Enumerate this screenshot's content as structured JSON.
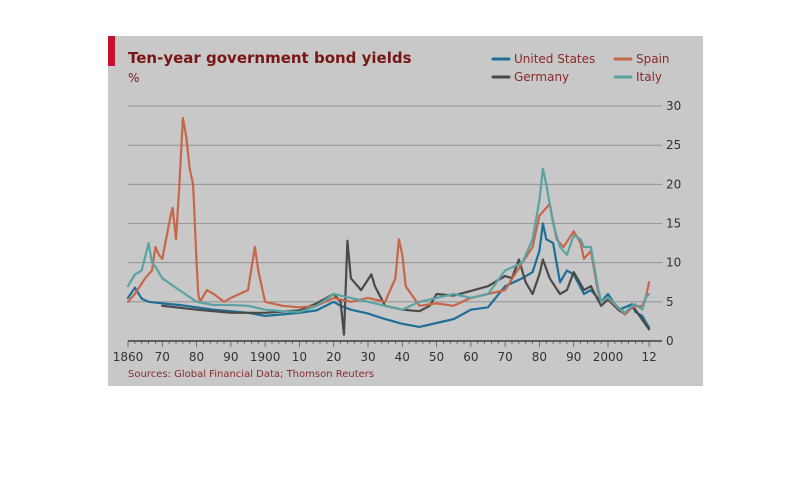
{
  "chart_data": {
    "type": "line",
    "title": "Ten-year government bond yields",
    "ylabel": "%",
    "source": "Sources: Global Financial Data; Thomson Reuters",
    "xlim": [
      1860,
      2014
    ],
    "ylim": [
      0,
      30
    ],
    "y_ticks": [
      0,
      5,
      10,
      15,
      20,
      25,
      30
    ],
    "x_ticks": [
      {
        "year": 1860,
        "label": "1860"
      },
      {
        "year": 1870,
        "label": "70"
      },
      {
        "year": 1880,
        "label": "80"
      },
      {
        "year": 1890,
        "label": "90"
      },
      {
        "year": 1900,
        "label": "1900"
      },
      {
        "year": 1910,
        "label": "10"
      },
      {
        "year": 1920,
        "label": "20"
      },
      {
        "year": 1930,
        "label": "30"
      },
      {
        "year": 1940,
        "label": "40"
      },
      {
        "year": 1950,
        "label": "50"
      },
      {
        "year": 1960,
        "label": "60"
      },
      {
        "year": 1970,
        "label": "70"
      },
      {
        "year": 1980,
        "label": "80"
      },
      {
        "year": 1990,
        "label": "90"
      },
      {
        "year": 2000,
        "label": "2000"
      },
      {
        "year": 2012,
        "label": "12"
      }
    ],
    "grid": true,
    "legend_position": "top-right",
    "series": [
      {
        "name": "United States",
        "color": "#1f6e96",
        "points": [
          [
            1860,
            5.5
          ],
          [
            1862,
            6.8
          ],
          [
            1864,
            5.4
          ],
          [
            1866,
            5.0
          ],
          [
            1870,
            4.8
          ],
          [
            1875,
            4.6
          ],
          [
            1880,
            4.3
          ],
          [
            1885,
            4.0
          ],
          [
            1890,
            3.8
          ],
          [
            1895,
            3.6
          ],
          [
            1900,
            3.2
          ],
          [
            1905,
            3.4
          ],
          [
            1910,
            3.6
          ],
          [
            1915,
            3.9
          ],
          [
            1920,
            5.0
          ],
          [
            1922,
            4.5
          ],
          [
            1925,
            4.0
          ],
          [
            1930,
            3.5
          ],
          [
            1935,
            2.8
          ],
          [
            1940,
            2.2
          ],
          [
            1945,
            1.8
          ],
          [
            1950,
            2.3
          ],
          [
            1955,
            2.8
          ],
          [
            1960,
            4.0
          ],
          [
            1965,
            4.3
          ],
          [
            1970,
            7.0
          ],
          [
            1975,
            8.0
          ],
          [
            1978,
            8.8
          ],
          [
            1980,
            11.5
          ],
          [
            1981,
            15.0
          ],
          [
            1982,
            13.0
          ],
          [
            1984,
            12.5
          ],
          [
            1986,
            7.5
          ],
          [
            1988,
            9.0
          ],
          [
            1990,
            8.5
          ],
          [
            1993,
            6.0
          ],
          [
            1995,
            6.5
          ],
          [
            1998,
            5.0
          ],
          [
            2000,
            6.0
          ],
          [
            2003,
            4.0
          ],
          [
            2005,
            4.3
          ],
          [
            2007,
            4.7
          ],
          [
            2008,
            3.7
          ],
          [
            2010,
            3.2
          ],
          [
            2012,
            1.7
          ]
        ]
      },
      {
        "name": "Germany",
        "color": "#4a4a4a",
        "points": [
          [
            1870,
            4.5
          ],
          [
            1880,
            4.0
          ],
          [
            1890,
            3.6
          ],
          [
            1900,
            3.6
          ],
          [
            1910,
            3.9
          ],
          [
            1915,
            4.8
          ],
          [
            1920,
            6.0
          ],
          [
            1922,
            5.0
          ],
          [
            1923,
            0.8
          ],
          [
            1924,
            12.8
          ],
          [
            1925,
            8.0
          ],
          [
            1928,
            6.5
          ],
          [
            1931,
            8.5
          ],
          [
            1932,
            7.0
          ],
          [
            1935,
            4.5
          ],
          [
            1940,
            4.0
          ],
          [
            1945,
            3.8
          ],
          [
            1948,
            4.5
          ],
          [
            1950,
            6.0
          ],
          [
            1955,
            5.8
          ],
          [
            1960,
            6.4
          ],
          [
            1965,
            7.0
          ],
          [
            1970,
            8.3
          ],
          [
            1972,
            8.0
          ],
          [
            1974,
            10.4
          ],
          [
            1976,
            7.5
          ],
          [
            1978,
            6.0
          ],
          [
            1980,
            8.5
          ],
          [
            1981,
            10.4
          ],
          [
            1983,
            8.0
          ],
          [
            1986,
            6.0
          ],
          [
            1988,
            6.5
          ],
          [
            1990,
            8.8
          ],
          [
            1993,
            6.5
          ],
          [
            1995,
            7.0
          ],
          [
            1998,
            4.5
          ],
          [
            2000,
            5.3
          ],
          [
            2003,
            4.0
          ],
          [
            2005,
            3.4
          ],
          [
            2007,
            4.3
          ],
          [
            2008,
            4.0
          ],
          [
            2010,
            2.7
          ],
          [
            2012,
            1.5
          ]
        ]
      },
      {
        "name": "Spain",
        "color": "#c8664a",
        "points": [
          [
            1860,
            5.0
          ],
          [
            1862,
            6.0
          ],
          [
            1865,
            8.0
          ],
          [
            1867,
            9.0
          ],
          [
            1868,
            12.0
          ],
          [
            1869,
            11.0
          ],
          [
            1870,
            10.5
          ],
          [
            1872,
            15.0
          ],
          [
            1873,
            17.0
          ],
          [
            1874,
            13.0
          ],
          [
            1875,
            20.0
          ],
          [
            1876,
            28.5
          ],
          [
            1877,
            26.0
          ],
          [
            1878,
            22.0
          ],
          [
            1879,
            20.0
          ],
          [
            1880,
            10.0
          ],
          [
            1880.5,
            6.0
          ],
          [
            1881,
            5.0
          ],
          [
            1883,
            6.5
          ],
          [
            1885,
            6.0
          ],
          [
            1888,
            5.0
          ],
          [
            1890,
            5.5
          ],
          [
            1895,
            6.5
          ],
          [
            1897,
            12.0
          ],
          [
            1898,
            9.0
          ],
          [
            1899,
            7.0
          ],
          [
            1900,
            5.0
          ],
          [
            1905,
            4.5
          ],
          [
            1910,
            4.3
          ],
          [
            1915,
            4.5
          ],
          [
            1920,
            5.5
          ],
          [
            1925,
            5.0
          ],
          [
            1930,
            5.5
          ],
          [
            1935,
            5.0
          ],
          [
            1938,
            8.0
          ],
          [
            1939,
            13.0
          ],
          [
            1940,
            11.0
          ],
          [
            1941,
            7.0
          ],
          [
            1945,
            4.5
          ],
          [
            1950,
            4.8
          ],
          [
            1955,
            4.5
          ],
          [
            1960,
            5.5
          ],
          [
            1965,
            6.0
          ],
          [
            1970,
            6.5
          ],
          [
            1975,
            10.0
          ],
          [
            1978,
            12.0
          ],
          [
            1980,
            16.0
          ],
          [
            1981,
            16.5
          ],
          [
            1983,
            17.5
          ],
          [
            1985,
            13.0
          ],
          [
            1987,
            12.0
          ],
          [
            1990,
            14.0
          ],
          [
            1992,
            12.5
          ],
          [
            1993,
            10.5
          ],
          [
            1995,
            11.5
          ],
          [
            1997,
            6.5
          ],
          [
            1998,
            5.0
          ],
          [
            2000,
            5.5
          ],
          [
            2003,
            4.2
          ],
          [
            2005,
            3.4
          ],
          [
            2007,
            4.3
          ],
          [
            2008,
            4.4
          ],
          [
            2010,
            4.5
          ],
          [
            2011,
            5.5
          ],
          [
            2012,
            7.5
          ]
        ]
      },
      {
        "name": "Italy",
        "color": "#5ba3a3",
        "points": [
          [
            1860,
            7.0
          ],
          [
            1862,
            8.5
          ],
          [
            1864,
            9.0
          ],
          [
            1866,
            12.5
          ],
          [
            1867,
            10.0
          ],
          [
            1868,
            9.5
          ],
          [
            1870,
            8.0
          ],
          [
            1875,
            6.5
          ],
          [
            1880,
            5.0
          ],
          [
            1885,
            4.6
          ],
          [
            1890,
            4.6
          ],
          [
            1895,
            4.5
          ],
          [
            1900,
            4.0
          ],
          [
            1905,
            3.8
          ],
          [
            1910,
            3.7
          ],
          [
            1915,
            4.5
          ],
          [
            1920,
            6.0
          ],
          [
            1925,
            5.5
          ],
          [
            1930,
            5.0
          ],
          [
            1935,
            4.5
          ],
          [
            1940,
            4.0
          ],
          [
            1945,
            5.0
          ],
          [
            1950,
            5.5
          ],
          [
            1955,
            6.0
          ],
          [
            1960,
            5.5
          ],
          [
            1965,
            6.0
          ],
          [
            1970,
            9.0
          ],
          [
            1975,
            10.0
          ],
          [
            1978,
            13.0
          ],
          [
            1980,
            18.0
          ],
          [
            1981,
            22.0
          ],
          [
            1982,
            20.0
          ],
          [
            1984,
            15.0
          ],
          [
            1986,
            12.0
          ],
          [
            1988,
            11.0
          ],
          [
            1990,
            13.5
          ],
          [
            1992,
            13.0
          ],
          [
            1993,
            12.0
          ],
          [
            1995,
            12.0
          ],
          [
            1997,
            7.0
          ],
          [
            1998,
            5.0
          ],
          [
            2000,
            5.6
          ],
          [
            2003,
            4.3
          ],
          [
            2005,
            3.6
          ],
          [
            2007,
            4.5
          ],
          [
            2008,
            4.7
          ],
          [
            2010,
            4.0
          ],
          [
            2011,
            5.5
          ],
          [
            2012,
            6.0
          ]
        ]
      }
    ]
  }
}
